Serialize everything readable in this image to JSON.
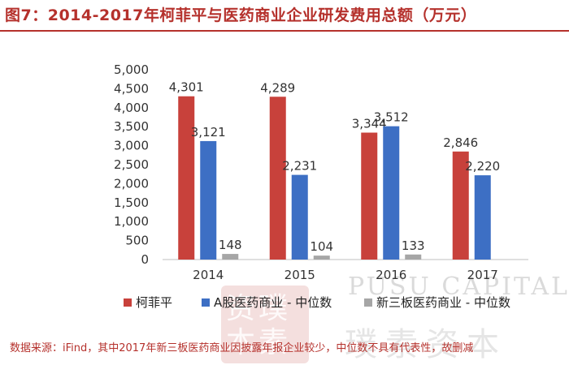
{
  "title": "图7：2014-2017年柯菲平与医药商业企业研发费用总额（万元）",
  "source": "数据来源：iFind，其中2017年新三板医药商业因披露年报企业较少，中位数不具有代表性，故删减",
  "watermark": {
    "latin": "PUSU CAPITAL",
    "seal": "资璞\n本素",
    "cn": "璞素资本"
  },
  "colors": {
    "title": "#b5312c",
    "series": [
      "#c8413b",
      "#3d6fc4",
      "#a6a6a6"
    ]
  },
  "chart_data": {
    "type": "bar",
    "categories": [
      "2014",
      "2015",
      "2016",
      "2017"
    ],
    "series": [
      {
        "name": "柯菲平",
        "values": [
          4301,
          4289,
          3344,
          2846
        ]
      },
      {
        "name": "A股医药商业 - 中位数",
        "values": [
          3121,
          2231,
          3512,
          2220
        ]
      },
      {
        "name": "新三板医药商业 - 中位数",
        "values": [
          148,
          104,
          133,
          null
        ]
      }
    ],
    "data_labels": [
      [
        "4,301",
        "4,289",
        "3,344",
        "2,846"
      ],
      [
        "3,121",
        "2,231",
        "3,512",
        "2,220"
      ],
      [
        "148",
        "104",
        "133",
        ""
      ]
    ],
    "yticks": [
      "0",
      "500",
      "1,000",
      "1,500",
      "2,000",
      "2,500",
      "3,000",
      "3,500",
      "4,000",
      "4,500",
      "5,000"
    ],
    "ylim": [
      0,
      5000
    ],
    "grid": false,
    "legend_position": "bottom"
  }
}
